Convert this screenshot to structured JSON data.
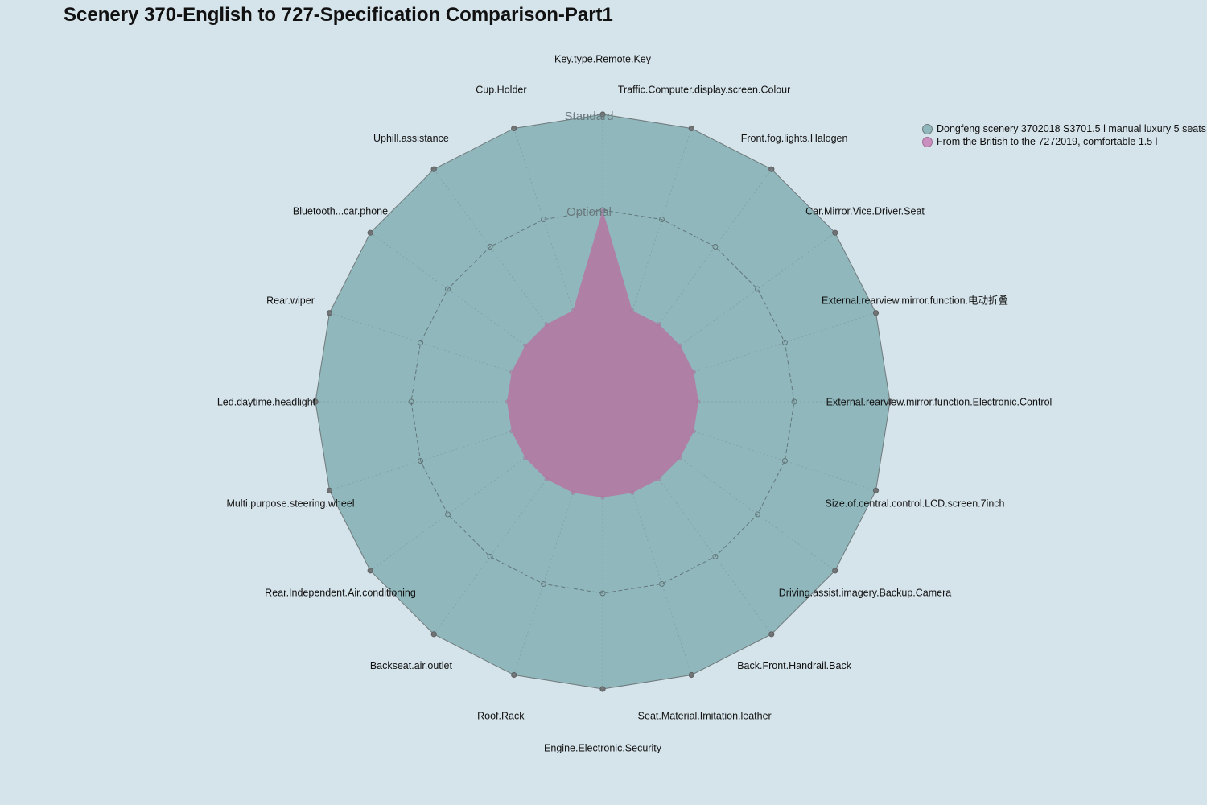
{
  "chart_data": {
    "type": "radar",
    "title": "Scenery 370-English to 727-Specification Comparison-Part1",
    "levels": [
      "Standard",
      "Optional"
    ],
    "level_values": [
      3,
      2
    ],
    "value_range": [
      0,
      3
    ],
    "grid": true,
    "legend_position": "top-right",
    "colors": {
      "background": "#d5e3ea",
      "series1_fill": "#8fb7bc",
      "series1_stroke": "#707a7c",
      "series2_fill": "#b07fa6",
      "series2_marker": "#c98fbe",
      "grid": "#7f9aa0"
    },
    "axes": [
      "Key.type.Remote.Key",
      "Traffic.Computer.display.screen.Colour",
      "Front.fog.lights.Halogen",
      "Car.Mirror.Vice.Driver.Seat",
      "External.rearview.mirror.function.电动折叠",
      "External.rearview.mirror.function.Electronic.Control",
      "Size.of.central.control.LCD.screen.7inch",
      "Driving.assist.imagery.Backup.Camera",
      "Back.Front.Handrail.Back",
      "Seat.Material.Imitation.leather",
      "Engine.Electronic.Security",
      "Roof.Rack",
      "Backseat.air.outlet",
      "Rear.Independent.Air.conditioning",
      "Multi.purpose.steering.wheel",
      "Led.daytime.headlight",
      "Rear.wiper",
      "Bluetooth...car.phone",
      "Uphill.assistance",
      "Cup.Holder"
    ],
    "series": [
      {
        "name": "Dongfeng scenery 3702018 S3701.5 l manual luxury 5 seats",
        "values": [
          3,
          3,
          3,
          3,
          3,
          3,
          3,
          3,
          3,
          3,
          3,
          3,
          3,
          3,
          3,
          3,
          3,
          3,
          3,
          3
        ]
      },
      {
        "name": "From the British to the 7272019, comfortable 1.5 l",
        "values": [
          2,
          1,
          1,
          1,
          1,
          1,
          1,
          1,
          1,
          1,
          1,
          1,
          1,
          1,
          1,
          1,
          1,
          1,
          1,
          1
        ]
      }
    ]
  }
}
